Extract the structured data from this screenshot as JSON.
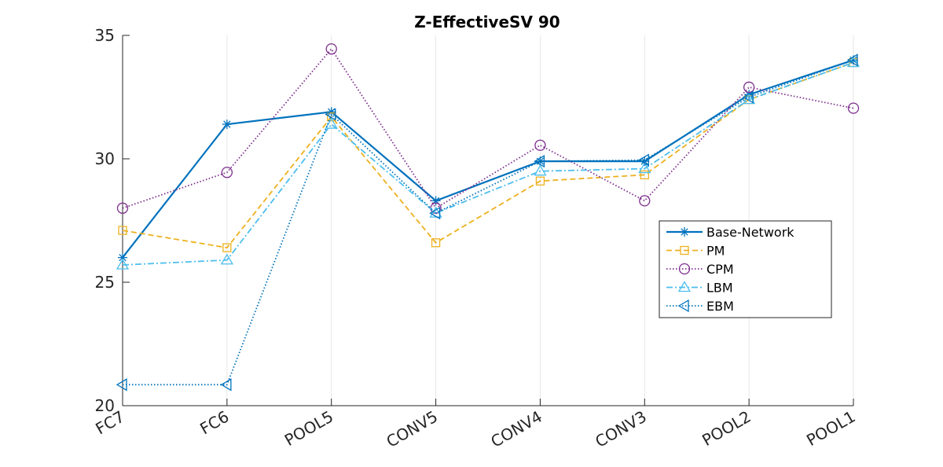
{
  "chart_data": {
    "type": "line",
    "title": "Z-EffectiveSV 90",
    "xlabel": "",
    "ylabel": "",
    "categories": [
      "FC7",
      "FC6",
      "POOL5",
      "CONV5",
      "CONV4",
      "CONV3",
      "POOL2",
      "POOL1"
    ],
    "ylim": [
      20,
      35
    ],
    "yticks": [
      20,
      25,
      30,
      35
    ],
    "grid": "x",
    "legend_position": "right",
    "series": [
      {
        "name": "Base-Network",
        "color": "#0072BD",
        "line_style": "solid",
        "marker": "asterisk",
        "values": [
          26.0,
          31.4,
          31.9,
          28.3,
          29.9,
          29.9,
          32.6,
          34.0
        ]
      },
      {
        "name": "PM",
        "color": "#EDB120",
        "line_style": "dashed",
        "marker": "square",
        "values": [
          27.1,
          26.4,
          31.7,
          26.6,
          29.1,
          29.35,
          32.4,
          33.9
        ]
      },
      {
        "name": "CPM",
        "color": "#7E2F8E",
        "line_style": "dotted",
        "marker": "circle",
        "values": [
          28.0,
          29.45,
          34.45,
          28.0,
          30.55,
          28.3,
          32.9,
          32.05
        ]
      },
      {
        "name": "LBM",
        "color": "#4DBEEE",
        "line_style": "dashdot",
        "marker": "triangle-up",
        "values": [
          25.7,
          25.9,
          31.4,
          27.8,
          29.5,
          29.6,
          32.4,
          33.9
        ]
      },
      {
        "name": "EBM",
        "color": "#0072BD",
        "line_style": "dotted",
        "marker": "triangle-left",
        "values": [
          20.85,
          20.85,
          31.8,
          27.8,
          29.9,
          29.95,
          32.5,
          34.0
        ]
      }
    ]
  }
}
